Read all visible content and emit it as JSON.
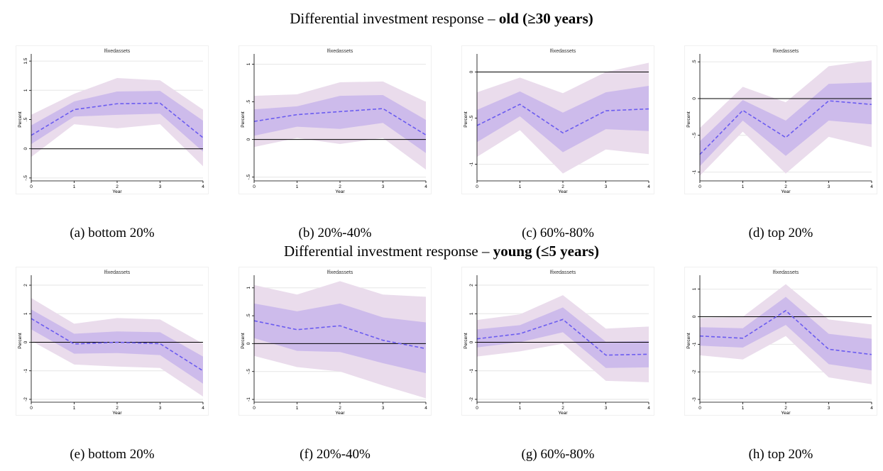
{
  "rows": [
    {
      "title_prefix": "Differential investment response – ",
      "title_bold": "old (≥30 years)"
    },
    {
      "title_prefix": "Differential investment response – ",
      "title_bold": "young (≤5 years)"
    }
  ],
  "colors": {
    "outer_band": "#eadcec",
    "inner_band": "#cdbbeb",
    "line": "#6b5cf0",
    "zero_line": "#000000",
    "grid": "#e6e6e6",
    "axis": "#000000"
  },
  "chart_data": [
    {
      "id": "a",
      "type": "line",
      "caption": "(a) bottom 20%",
      "title": "lfixedassets",
      "xlabel": "Year",
      "ylabel": "Percent",
      "x": [
        0,
        1,
        2,
        3,
        4
      ],
      "ylim": [
        -0.55,
        1.55
      ],
      "yticks": [
        -0.5,
        0,
        0.5,
        1,
        1.5
      ],
      "ytick_labels": [
        "-.5",
        "0",
        ".5",
        "1",
        "1.5"
      ],
      "xticks": [
        "0",
        "1",
        "2",
        "3",
        "4"
      ],
      "series": [
        {
          "values": [
            0.23,
            0.67,
            0.77,
            0.78,
            0.19
          ]
        }
      ],
      "ci_inner_lower": [
        0.08,
        0.55,
        0.58,
        0.6,
        -0.05
      ],
      "ci_inner_upper": [
        0.4,
        0.81,
        0.98,
        0.99,
        0.48
      ],
      "ci_outer_lower": [
        -0.14,
        0.42,
        0.35,
        0.42,
        -0.3
      ],
      "ci_outer_upper": [
        0.58,
        0.94,
        1.21,
        1.17,
        0.67
      ]
    },
    {
      "id": "b",
      "type": "line",
      "caption": "(b) 20%-40%",
      "title": "lfixedassets",
      "xlabel": "Year",
      "ylabel": "Percent",
      "x": [
        0,
        1,
        2,
        3,
        4
      ],
      "ylim": [
        -0.55,
        1.08
      ],
      "yticks": [
        -0.5,
        0,
        0.5,
        1
      ],
      "ytick_labels": [
        "-.5",
        "0",
        ".5",
        "1"
      ],
      "xticks": [
        "0",
        "1",
        "2",
        "3",
        "4"
      ],
      "series": [
        {
          "values": [
            0.24,
            0.33,
            0.37,
            0.41,
            0.06
          ]
        }
      ],
      "ci_inner_lower": [
        0.05,
        0.17,
        0.14,
        0.22,
        -0.18
      ],
      "ci_inner_upper": [
        0.4,
        0.44,
        0.58,
        0.59,
        0.26
      ],
      "ci_outer_lower": [
        -0.1,
        0.02,
        -0.06,
        0.02,
        -0.4
      ],
      "ci_outer_upper": [
        0.58,
        0.6,
        0.76,
        0.77,
        0.5
      ]
    },
    {
      "id": "c",
      "type": "line",
      "caption": "(c) 60%-80%",
      "title": "lfixedassets",
      "xlabel": "Year",
      "ylabel": "Percent",
      "x": [
        0,
        1,
        2,
        3,
        4
      ],
      "ylim": [
        -1.18,
        0.15
      ],
      "yticks": [
        -1,
        -0.5,
        0
      ],
      "ytick_labels": [
        "-1",
        "-.5",
        "0"
      ],
      "xticks": [
        "0",
        "1",
        "2",
        "3",
        "4"
      ],
      "series": [
        {
          "values": [
            -0.58,
            -0.35,
            -0.66,
            -0.42,
            -0.4
          ]
        }
      ],
      "ci_inner_lower": [
        -0.76,
        -0.48,
        -0.87,
        -0.62,
        -0.64
      ],
      "ci_inner_upper": [
        -0.41,
        -0.21,
        -0.44,
        -0.22,
        -0.15
      ],
      "ci_outer_lower": [
        -0.92,
        -0.63,
        -1.1,
        -0.84,
        -0.89
      ],
      "ci_outer_upper": [
        -0.22,
        -0.06,
        -0.23,
        0.0,
        0.1
      ]
    },
    {
      "id": "d",
      "type": "line",
      "caption": "(d) top 20%",
      "title": "lfixedassets",
      "xlabel": "Year",
      "ylabel": "Percent",
      "x": [
        0,
        1,
        2,
        3,
        4
      ],
      "ylim": [
        -1.12,
        0.55
      ],
      "yticks": [
        -1,
        -0.5,
        0,
        0.5
      ],
      "ytick_labels": [
        "-1",
        "-.5",
        "0",
        ".5"
      ],
      "xticks": [
        "0",
        "1",
        "2",
        "3",
        "4"
      ],
      "series": [
        {
          "values": [
            -0.76,
            -0.16,
            -0.53,
            -0.03,
            -0.08
          ]
        }
      ],
      "ci_inner_lower": [
        -0.92,
        -0.3,
        -0.78,
        -0.3,
        -0.35
      ],
      "ci_inner_upper": [
        -0.58,
        -0.02,
        -0.3,
        0.2,
        0.22
      ],
      "ci_outer_lower": [
        -1.05,
        -0.45,
        -1.02,
        -0.52,
        -0.66
      ],
      "ci_outer_upper": [
        -0.4,
        0.16,
        -0.05,
        0.44,
        0.52
      ]
    },
    {
      "id": "e",
      "type": "line",
      "caption": "(e) bottom 20%",
      "title": "lfixedassets",
      "xlabel": "Year",
      "ylabel": "Percent",
      "x": [
        0,
        1,
        2,
        3,
        4
      ],
      "ylim": [
        -2.1,
        2.2
      ],
      "yticks": [
        -2,
        -1,
        0,
        1,
        2
      ],
      "ytick_labels": [
        "-2",
        "-1",
        "0",
        "1",
        "2"
      ],
      "xticks": [
        "0",
        "1",
        "2",
        "3",
        "4"
      ],
      "series": [
        {
          "values": [
            0.83,
            -0.06,
            0.0,
            -0.05,
            -1.0
          ]
        }
      ],
      "ci_inner_lower": [
        0.45,
        -0.4,
        -0.38,
        -0.45,
        -1.45
      ],
      "ci_inner_upper": [
        1.15,
        0.3,
        0.38,
        0.35,
        -0.5
      ],
      "ci_outer_lower": [
        0.05,
        -0.78,
        -0.85,
        -0.9,
        -1.9
      ],
      "ci_outer_upper": [
        1.55,
        0.65,
        0.85,
        0.8,
        -0.05
      ]
    },
    {
      "id": "f",
      "type": "line",
      "caption": "(f) 20%-40%",
      "title": "lfixedassets",
      "xlabel": "Year",
      "ylabel": "Percent",
      "x": [
        0,
        1,
        2,
        3,
        4
      ],
      "ylim": [
        -1.05,
        1.15
      ],
      "yticks": [
        -1,
        -0.5,
        0,
        0.5,
        1
      ],
      "ytick_labels": [
        "-1",
        "-.5",
        "0",
        ".5",
        "1"
      ],
      "xticks": [
        "0",
        "1",
        "2",
        "3",
        "4"
      ],
      "series": [
        {
          "values": [
            0.41,
            0.25,
            0.32,
            0.06,
            -0.09
          ]
        }
      ],
      "ci_inner_lower": [
        0.1,
        -0.13,
        -0.15,
        -0.35,
        -0.53
      ],
      "ci_inner_upper": [
        0.72,
        0.58,
        0.72,
        0.47,
        0.38
      ],
      "ci_outer_lower": [
        -0.22,
        -0.42,
        -0.5,
        -0.75,
        -0.98
      ],
      "ci_outer_upper": [
        1.05,
        0.88,
        1.12,
        0.88,
        0.84
      ]
    },
    {
      "id": "g",
      "type": "line",
      "caption": "(g) 60%-80%",
      "title": "lfixedassets",
      "xlabel": "Year",
      "ylabel": "Percent",
      "x": [
        0,
        1,
        2,
        3,
        4
      ],
      "ylim": [
        -2.1,
        2.2
      ],
      "yticks": [
        -2,
        -1,
        0,
        1,
        2
      ],
      "ytick_labels": [
        "-2",
        "-1",
        "0",
        "1",
        "2"
      ],
      "xticks": [
        "0",
        "1",
        "2",
        "3",
        "4"
      ],
      "series": [
        {
          "values": [
            0.12,
            0.3,
            0.8,
            -0.45,
            -0.42
          ]
        }
      ],
      "ci_inner_lower": [
        -0.18,
        0.0,
        0.35,
        -0.9,
        -0.88
      ],
      "ci_inner_upper": [
        0.45,
        0.6,
        1.22,
        0.02,
        0.05
      ],
      "ci_outer_lower": [
        -0.5,
        -0.32,
        -0.05,
        -1.35,
        -1.4
      ],
      "ci_outer_upper": [
        0.78,
        0.98,
        1.65,
        0.48,
        0.55
      ]
    },
    {
      "id": "h",
      "type": "line",
      "caption": "(h) top 20%",
      "title": "lfixedassets",
      "xlabel": "Year",
      "ylabel": "Percent",
      "x": [
        0,
        1,
        2,
        3,
        4
      ],
      "ylim": [
        -3.1,
        1.35
      ],
      "yticks": [
        -3,
        -2,
        -1,
        0,
        1
      ],
      "ytick_labels": [
        "-3",
        "-2",
        "-1",
        "0",
        "1"
      ],
      "xticks": [
        "0",
        "1",
        "2",
        "3",
        "4"
      ],
      "series": [
        {
          "values": [
            -0.7,
            -0.78,
            0.22,
            -1.18,
            -1.37
          ]
        }
      ],
      "ci_inner_lower": [
        -1.05,
        -1.12,
        -0.3,
        -1.72,
        -1.95
      ],
      "ci_inner_upper": [
        -0.38,
        -0.42,
        0.72,
        -0.62,
        -0.8
      ],
      "ci_outer_lower": [
        -1.4,
        -1.55,
        -0.7,
        -2.2,
        -2.45
      ],
      "ci_outer_upper": [
        -0.05,
        0.0,
        1.18,
        -0.1,
        -0.28
      ]
    }
  ]
}
